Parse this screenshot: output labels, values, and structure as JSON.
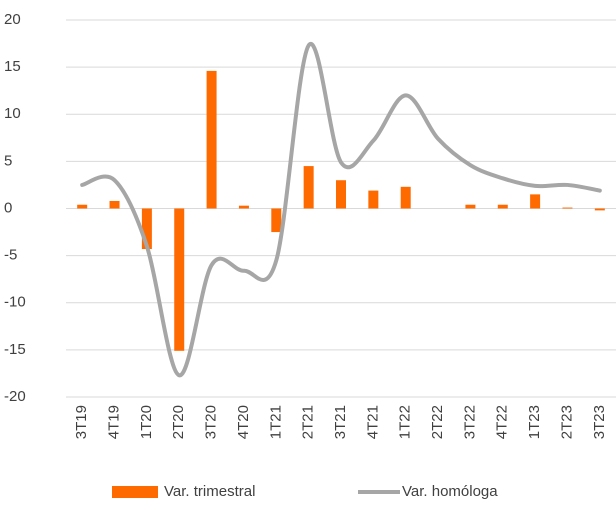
{
  "chart_data": {
    "type": "bar_line",
    "categories": [
      "3T19",
      "4T19",
      "1T20",
      "2T20",
      "3T20",
      "4T20",
      "1T21",
      "2T21",
      "3T21",
      "4T21",
      "1T22",
      "2T22",
      "3T22",
      "4T22",
      "1T23",
      "2T23",
      "3T23"
    ],
    "series": [
      {
        "name": "Var. trimestral",
        "type": "bar",
        "color": "#ff6a00",
        "values": [
          0.4,
          0.8,
          -4.3,
          -15.1,
          14.6,
          0.3,
          -2.5,
          4.5,
          3.0,
          1.9,
          2.3,
          0.0,
          0.4,
          0.4,
          1.5,
          0.1,
          -0.2
        ]
      },
      {
        "name": "Var. homóloga",
        "type": "line",
        "color": "#a6a6a6",
        "values": [
          2.5,
          3.0,
          -4.0,
          -17.7,
          -6.0,
          -6.6,
          -5.5,
          17.3,
          4.9,
          7.2,
          12.0,
          7.4,
          4.6,
          3.2,
          2.4,
          2.5,
          1.9
        ]
      }
    ],
    "ylim": [
      -20,
      20
    ],
    "yticks": [
      -20,
      -15,
      -10,
      -5,
      0,
      5,
      10,
      15,
      20
    ],
    "grid": true,
    "legend": "bottom"
  }
}
